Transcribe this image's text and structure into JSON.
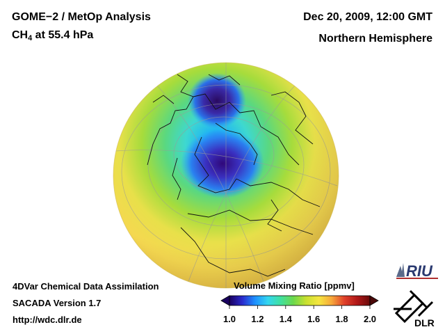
{
  "header": {
    "title_left": "GOME−2 / MetOp Analysis",
    "species": "CH",
    "species_sub": "4",
    "level": " at 55.4 hPa",
    "datetime": "Dec 20, 2009, 12:00 GMT",
    "region": "Northern Hemisphere"
  },
  "footer": {
    "line1": "4DVar Chemical Data Assimilation",
    "line2": "SACADA Version 1.7",
    "line3": "http://wdc.dlr.de"
  },
  "colorbar": {
    "title": "Volume Mixing Ratio [ppmv]",
    "ticks": [
      "1.0",
      "1.2",
      "1.4",
      "1.6",
      "1.8",
      "2.0"
    ],
    "colors": [
      "#1a0060",
      "#2a2acc",
      "#1e90ff",
      "#33d6f0",
      "#40e0a0",
      "#6cd84c",
      "#c8e030",
      "#f5e640",
      "#f7a83a",
      "#e0402a",
      "#b01818",
      "#6a0a0a"
    ]
  },
  "map": {
    "projection": "orthographic",
    "field_colors": {
      "background_low_lat": "#f5e04a",
      "mid_lat": "#8fd84a",
      "polar_band": "#46d9c8",
      "vortex_edge": "#2aa8ff",
      "vortex_core": "#2a1a7a"
    }
  },
  "logos": {
    "riu": "RIU",
    "dlr": "DLR"
  }
}
